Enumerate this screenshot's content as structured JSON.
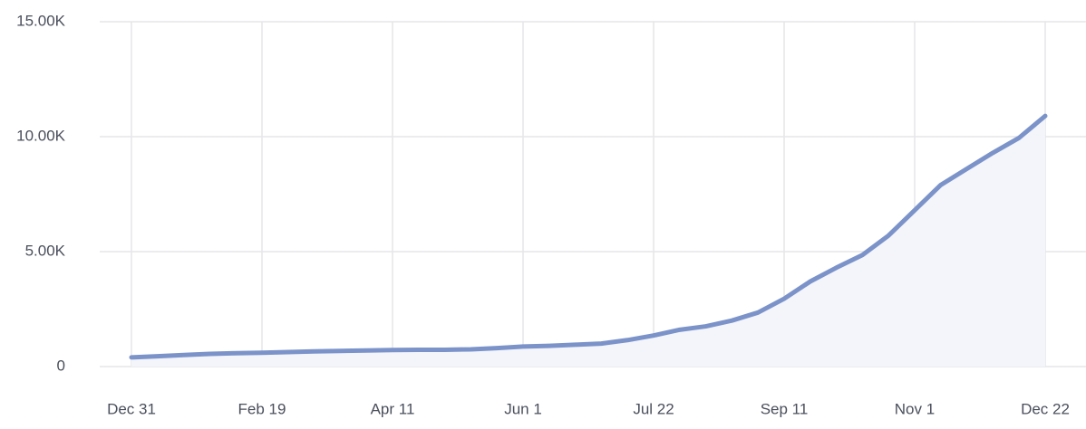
{
  "chart_data": {
    "type": "area",
    "categories": [
      "Dec 31",
      null,
      null,
      null,
      null,
      "Feb 19",
      null,
      null,
      null,
      null,
      "Apr 11",
      null,
      null,
      null,
      null,
      "Jun 1",
      null,
      null,
      null,
      null,
      "Jul 22",
      null,
      null,
      null,
      null,
      "Sep 11",
      null,
      null,
      null,
      null,
      "Nov 1",
      null,
      null,
      null,
      null,
      "Dec 22"
    ],
    "values": [
      400,
      450,
      500,
      550,
      580,
      600,
      630,
      660,
      680,
      700,
      720,
      730,
      730,
      750,
      800,
      870,
      900,
      950,
      1000,
      1150,
      1350,
      1600,
      1750,
      2000,
      2350,
      2950,
      3700,
      4300,
      4850,
      5700,
      6800,
      7900,
      8600,
      9300,
      9950,
      10900
    ],
    "color": "#7b93c9",
    "fill": "#f4f5fa",
    "ylim": [
      0,
      15000
    ],
    "yticks": [
      0,
      {
        "value": 5000,
        "label": "5.00K"
      },
      {
        "value": 10000,
        "label": "10.00K"
      },
      {
        "value": 15000,
        "label": "15.00K"
      }
    ],
    "grid": true
  }
}
